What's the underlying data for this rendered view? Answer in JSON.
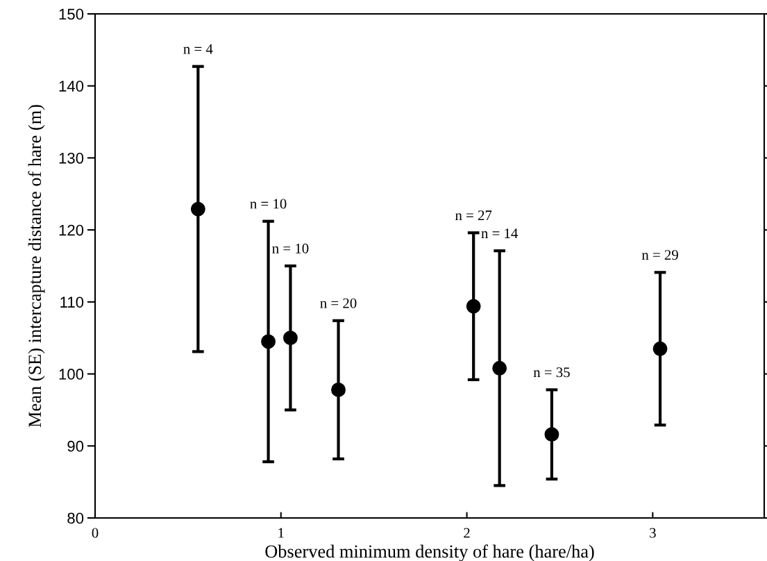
{
  "chart_data": {
    "type": "scatter",
    "xlabel": "Observed minimum density of hare (hare/ha)",
    "ylabel": "Mean (SE) intercapture distance of hare (m)",
    "x": [
      0.554,
      0.932,
      1.051,
      1.309,
      2.036,
      2.176,
      2.457,
      3.04
    ],
    "series": [
      {
        "color": "#000000",
        "values": [
          122.9,
          104.5,
          105.0,
          97.8,
          109.4,
          100.8,
          91.6,
          103.5
        ],
        "errors": [
          19.8,
          16.7,
          10.0,
          9.6,
          10.2,
          16.3,
          6.2,
          10.6
        ]
      }
    ],
    "annotations": [
      "n = 4",
      "n = 10",
      "n = 10",
      "n = 20",
      "n = 27",
      "n = 14",
      "n = 35",
      "n = 29"
    ],
    "xlim": [
      0,
      3.6
    ],
    "xticks": [
      0,
      1,
      2,
      3
    ],
    "ylim": [
      80,
      150
    ],
    "yticks": [
      80,
      90,
      100,
      110,
      120,
      130,
      140,
      150
    ],
    "marker": "circle",
    "grid": false,
    "legend": false
  }
}
